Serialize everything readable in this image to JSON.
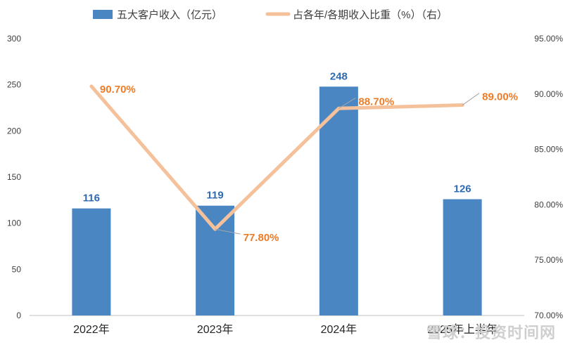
{
  "legend": {
    "bar_label": "五大客户收入（亿元）",
    "line_label": "占各年/各期收入比重（%）（右）",
    "placement": "top"
  },
  "watermark": {
    "text": "雪球：投资时间网"
  },
  "chart_data": {
    "type": "bar",
    "categories": [
      "2022年",
      "2023年",
      "2024年",
      "2025年上半年"
    ],
    "series": [
      {
        "name": "五大客户收入（亿元）",
        "type": "bar",
        "axis": "left",
        "values": [
          116,
          119,
          248,
          126
        ],
        "labels": [
          "116",
          "119",
          "248",
          "126"
        ]
      },
      {
        "name": "占各年/各期收入比重（%）（右）",
        "type": "line",
        "axis": "right",
        "values": [
          90.7,
          77.8,
          88.7,
          89.0
        ],
        "labels": [
          "90.70%",
          "77.80%",
          "88.70%",
          "89.00%"
        ]
      }
    ],
    "y_left": {
      "ylim": [
        0,
        300
      ],
      "ticks": [
        "0",
        "50",
        "100",
        "150",
        "200",
        "250",
        "300"
      ],
      "tick_values": [
        0,
        50,
        100,
        150,
        200,
        250,
        300
      ]
    },
    "y_right": {
      "ylim": [
        70,
        95
      ],
      "ticks": [
        "70.00%",
        "75.00%",
        "80.00%",
        "85.00%",
        "90.00%",
        "95.00%"
      ],
      "tick_values": [
        70,
        75,
        80,
        85,
        90,
        95
      ]
    },
    "grid": false,
    "colors": {
      "bar": "#4a86c2",
      "line": "#f4c19b",
      "bar_label": "#2e6bb0",
      "line_label": "#ee7b26",
      "axis_text": "#404040",
      "axis_line": "#bfbfbf"
    }
  }
}
